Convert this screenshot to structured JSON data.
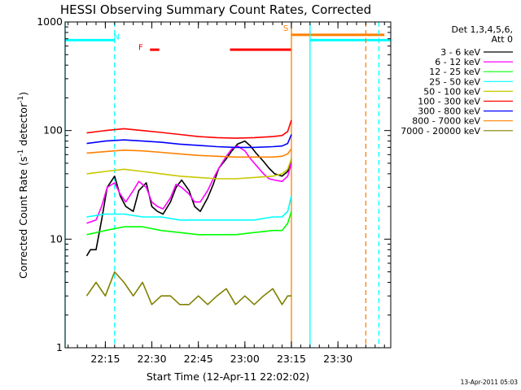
{
  "chart_data": {
    "type": "line",
    "title": "HESSI Observing Summary Count Rates, Corrected",
    "xlabel": "Start Time (12-Apr-11 22:02:02)",
    "ylabel_main": "Corrected Count Rate (s",
    "ylabel_sup1": "-1",
    "ylabel_mid": " detector",
    "ylabel_sup2": "-1",
    "ylabel_end": ")",
    "xlim": [
      22.0339,
      23.7839
    ],
    "xticks": [
      {
        "v": 22.25,
        "label": "22:15"
      },
      {
        "v": 22.5,
        "label": "22:30"
      },
      {
        "v": 22.75,
        "label": "22:45"
      },
      {
        "v": 23.0,
        "label": "23:00"
      },
      {
        "v": 23.25,
        "label": "23:15"
      },
      {
        "v": 23.5,
        "label": "23:30"
      }
    ],
    "y_scale": "log",
    "ylim": [
      1,
      1000
    ],
    "yticks": [
      {
        "v": 1,
        "label": "1"
      },
      {
        "v": 10,
        "label": "10"
      },
      {
        "v": 100,
        "label": "100"
      },
      {
        "v": 1000,
        "label": "1000"
      }
    ],
    "legend_title": [
      "Det 1,3,4,5,6,",
      "Att 0"
    ],
    "legend_placement": "right",
    "series": [
      {
        "name": "3 - 6 keV",
        "color": "#000000",
        "x": [
          22.15,
          22.17,
          22.2,
          22.23,
          22.26,
          22.3,
          22.33,
          22.36,
          22.4,
          22.43,
          22.47,
          22.5,
          22.53,
          22.56,
          22.6,
          22.63,
          22.66,
          22.7,
          22.73,
          22.76,
          22.8,
          22.83,
          22.86,
          22.9,
          22.93,
          22.96,
          23.0,
          23.03,
          23.06,
          23.1,
          23.13,
          23.16,
          23.2,
          23.23,
          23.25
        ],
        "y": [
          7,
          8,
          8,
          15,
          30,
          38,
          25,
          20,
          18,
          28,
          33,
          20,
          18,
          17,
          22,
          30,
          35,
          28,
          20,
          18,
          24,
          32,
          45,
          55,
          65,
          75,
          80,
          72,
          62,
          52,
          45,
          40,
          38,
          42,
          55
        ]
      },
      {
        "name": "6 - 12 keV",
        "color": "#ff00ff",
        "x": [
          22.15,
          22.2,
          22.23,
          22.26,
          22.3,
          22.33,
          22.36,
          22.4,
          22.43,
          22.47,
          22.5,
          22.53,
          22.56,
          22.6,
          22.63,
          22.66,
          22.7,
          22.73,
          22.76,
          22.8,
          22.83,
          22.86,
          22.9,
          22.93,
          22.96,
          23.0,
          23.03,
          23.06,
          23.1,
          23.13,
          23.16,
          23.2,
          23.23,
          23.25
        ],
        "y": [
          14,
          15,
          20,
          30,
          33,
          26,
          22,
          28,
          34,
          30,
          22,
          20,
          19,
          24,
          32,
          30,
          26,
          22,
          22,
          28,
          36,
          45,
          58,
          68,
          72,
          65,
          55,
          48,
          40,
          36,
          35,
          34,
          38,
          50
        ]
      },
      {
        "name": "12 - 25 keV",
        "color": "#00ff00",
        "x": [
          22.15,
          22.25,
          22.35,
          22.45,
          22.55,
          22.65,
          22.75,
          22.85,
          22.95,
          23.05,
          23.15,
          23.2,
          23.23,
          23.25
        ],
        "y": [
          11,
          12,
          13,
          13,
          12,
          11.5,
          11,
          11,
          11,
          11.5,
          12,
          12,
          14,
          18
        ]
      },
      {
        "name": "25 - 50 keV",
        "color": "#00ffff",
        "x": [
          22.15,
          22.25,
          22.35,
          22.45,
          22.55,
          22.65,
          22.75,
          22.85,
          22.95,
          23.05,
          23.15,
          23.2,
          23.23,
          23.25
        ],
        "y": [
          16,
          17,
          17,
          16,
          16,
          15,
          15,
          15,
          15,
          15,
          16,
          16,
          18,
          25
        ]
      },
      {
        "name": "50 - 100 keV",
        "color": "#c8c800",
        "x": [
          22.15,
          22.25,
          22.35,
          22.45,
          22.55,
          22.65,
          22.75,
          22.85,
          22.95,
          23.05,
          23.15,
          23.2,
          23.23,
          23.25
        ],
        "y": [
          40,
          42,
          44,
          42,
          40,
          38,
          37,
          36,
          36,
          37,
          38,
          40,
          44,
          55
        ]
      },
      {
        "name": "100 - 300 keV",
        "color": "#ff0000",
        "x": [
          22.15,
          22.25,
          22.35,
          22.45,
          22.55,
          22.65,
          22.75,
          22.85,
          22.95,
          23.05,
          23.15,
          23.2,
          23.23,
          23.25
        ],
        "y": [
          95,
          100,
          104,
          100,
          96,
          92,
          88,
          86,
          85,
          86,
          88,
          90,
          98,
          125
        ]
      },
      {
        "name": "300 - 800 keV",
        "color": "#0000ff",
        "x": [
          22.15,
          22.25,
          22.35,
          22.45,
          22.55,
          22.65,
          22.75,
          22.85,
          22.95,
          23.05,
          23.15,
          23.2,
          23.23,
          23.25
        ],
        "y": [
          76,
          80,
          82,
          80,
          78,
          75,
          73,
          71,
          70,
          70,
          71,
          72,
          76,
          92
        ]
      },
      {
        "name": "800 - 7000 keV",
        "color": "#ff8000",
        "x": [
          22.15,
          22.25,
          22.35,
          22.45,
          22.55,
          22.65,
          22.75,
          22.85,
          22.95,
          23.05,
          23.15,
          23.2,
          23.23,
          23.25
        ],
        "y": [
          62,
          64,
          66,
          65,
          63,
          61,
          59,
          58,
          57,
          57,
          57,
          58,
          61,
          68
        ]
      },
      {
        "name": "7000 - 20000 keV",
        "color": "#808000",
        "x": [
          22.15,
          22.2,
          22.25,
          22.3,
          22.35,
          22.4,
          22.45,
          22.5,
          22.55,
          22.6,
          22.65,
          22.7,
          22.75,
          22.8,
          22.85,
          22.9,
          22.95,
          23.0,
          23.05,
          23.1,
          23.15,
          23.2,
          23.23,
          23.25
        ],
        "y": [
          3,
          4,
          3,
          5,
          4,
          3,
          4,
          2.5,
          3,
          3,
          2.5,
          2.5,
          3,
          2.5,
          3,
          3.5,
          2.5,
          3,
          2.5,
          3,
          3.5,
          2.5,
          3,
          3
        ]
      }
    ],
    "intervals": [
      {
        "x0": 22.0339,
        "x1": 22.3,
        "y": 680,
        "color": "#00ffff"
      },
      {
        "x0": 23.35,
        "x1": 23.7839,
        "y": 680,
        "color": "#00ffff"
      },
      {
        "x0": 23.25,
        "x1": 23.75,
        "y": 760,
        "color": "#ff8000"
      },
      {
        "x0": 22.49,
        "x1": 22.54,
        "y": 555,
        "color": "#ff0000"
      },
      {
        "x0": 22.92,
        "x1": 23.25,
        "y": 555,
        "color": "#ff0000"
      }
    ],
    "markers": [
      {
        "label": "N",
        "x": 22.31,
        "y": 690,
        "color": "#00ffff"
      },
      {
        "label": "F",
        "x": 22.44,
        "y": 550,
        "color": "#ff0000"
      },
      {
        "label": "S",
        "x": 23.22,
        "y": 830,
        "color": "#ff8000"
      }
    ],
    "vlines": [
      {
        "x": 22.0339,
        "color": "#00ffff",
        "style": "solid"
      },
      {
        "x": 22.3,
        "color": "#00ffff",
        "style": "dashed"
      },
      {
        "x": 23.35,
        "color": "#00ffff",
        "style": "solid"
      },
      {
        "x": 23.72,
        "color": "#00ffff",
        "style": "dashed"
      },
      {
        "x": 23.25,
        "color": "#ff8000",
        "style": "solid"
      },
      {
        "x": 23.65,
        "color": "#ff8000",
        "style": "dashed"
      }
    ]
  },
  "footer": {
    "timestamp": "13-Apr-2011 05:03"
  }
}
